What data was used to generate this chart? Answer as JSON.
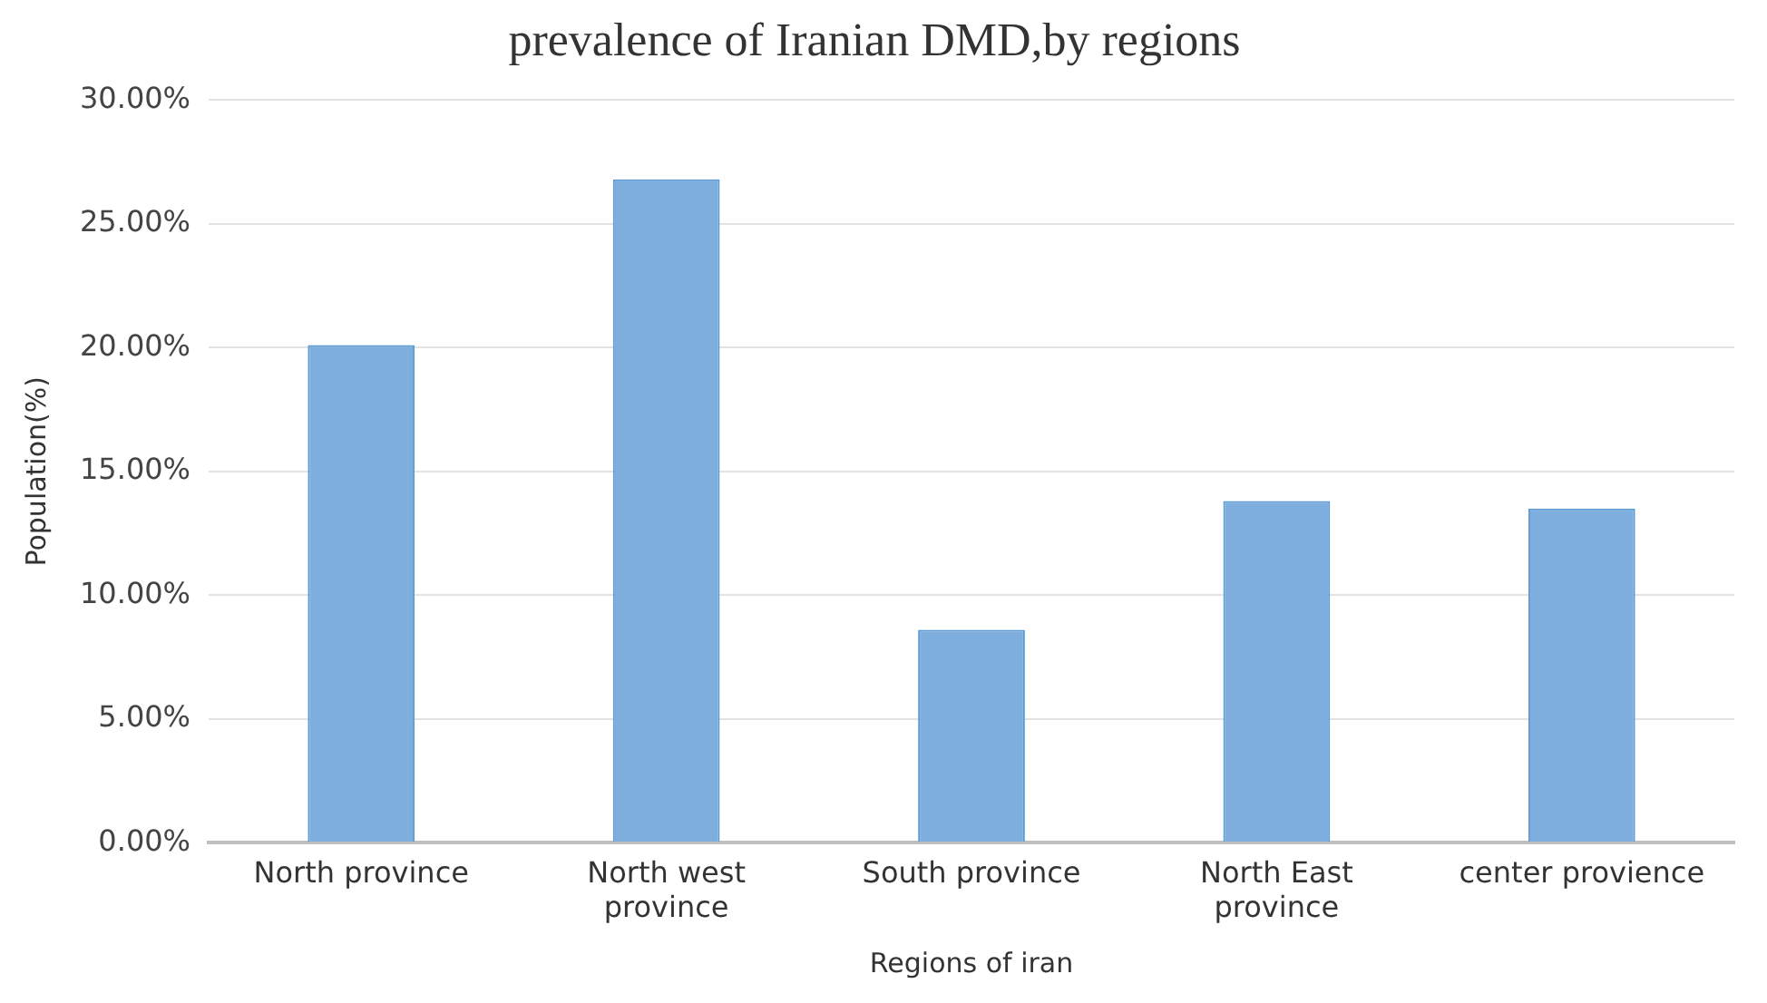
{
  "chart_data": {
    "type": "bar",
    "title": "prevalence of Iranian DMD,by regions",
    "xlabel": "Regions of iran",
    "ylabel": "Population(%)",
    "categories": [
      "North province",
      "North west province",
      "South province",
      "North East province",
      "center provience"
    ],
    "values": [
      20.1,
      26.8,
      8.6,
      13.8,
      13.5
    ],
    "color": "#7eaedd",
    "ylim": [
      0,
      30
    ],
    "yticks": [
      {
        "value": 0,
        "label": "0.00%"
      },
      {
        "value": 5,
        "label": "5.00%"
      },
      {
        "value": 10,
        "label": "10.00%"
      },
      {
        "value": 15,
        "label": "15.00%"
      },
      {
        "value": 20,
        "label": "20.00%"
      },
      {
        "value": 25,
        "label": "25.00%"
      },
      {
        "value": 30,
        "label": "30.00%"
      }
    ],
    "grid": "y"
  }
}
